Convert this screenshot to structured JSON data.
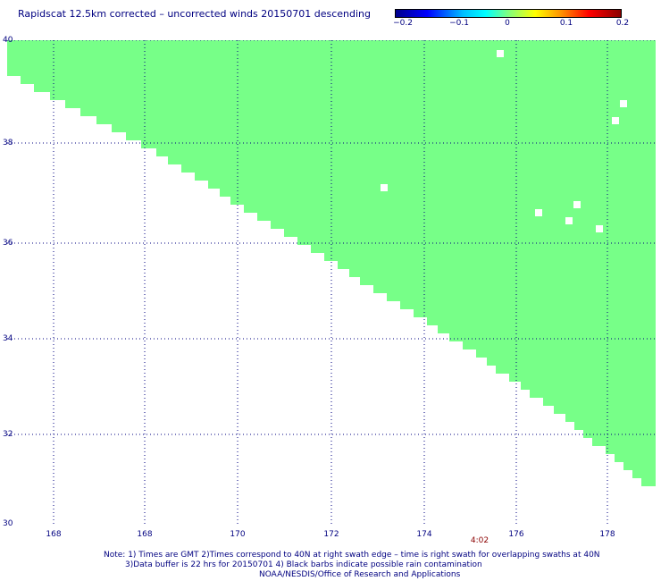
{
  "title": "Rapidscat 12.5km corrected – uncorrected winds 20150701 descending",
  "colorbar": {
    "labels": [
      "−0.2",
      "−0.1",
      "0",
      "0.1",
      "0.2"
    ]
  },
  "map": {
    "swath_color": "#77ff88",
    "grid_color": "#000080",
    "y_ticks": [
      "40",
      "38",
      "36",
      "34",
      "32",
      "30"
    ],
    "x_ticks": [
      "168",
      "168",
      "170",
      "172",
      "174",
      "176",
      "178"
    ]
  },
  "time_label": "4:02",
  "notes": {
    "line1": "Note: 1) Times are GMT 2)Times correspond to 40N at right swath edge – time is right swath for overlapping swaths at 40N",
    "line2": "3)Data buffer is 22 hrs for 20150701 4) Black barbs indicate possible rain contamination",
    "line3": "NOAA/NESDIS/Office of Research and Applications"
  }
}
